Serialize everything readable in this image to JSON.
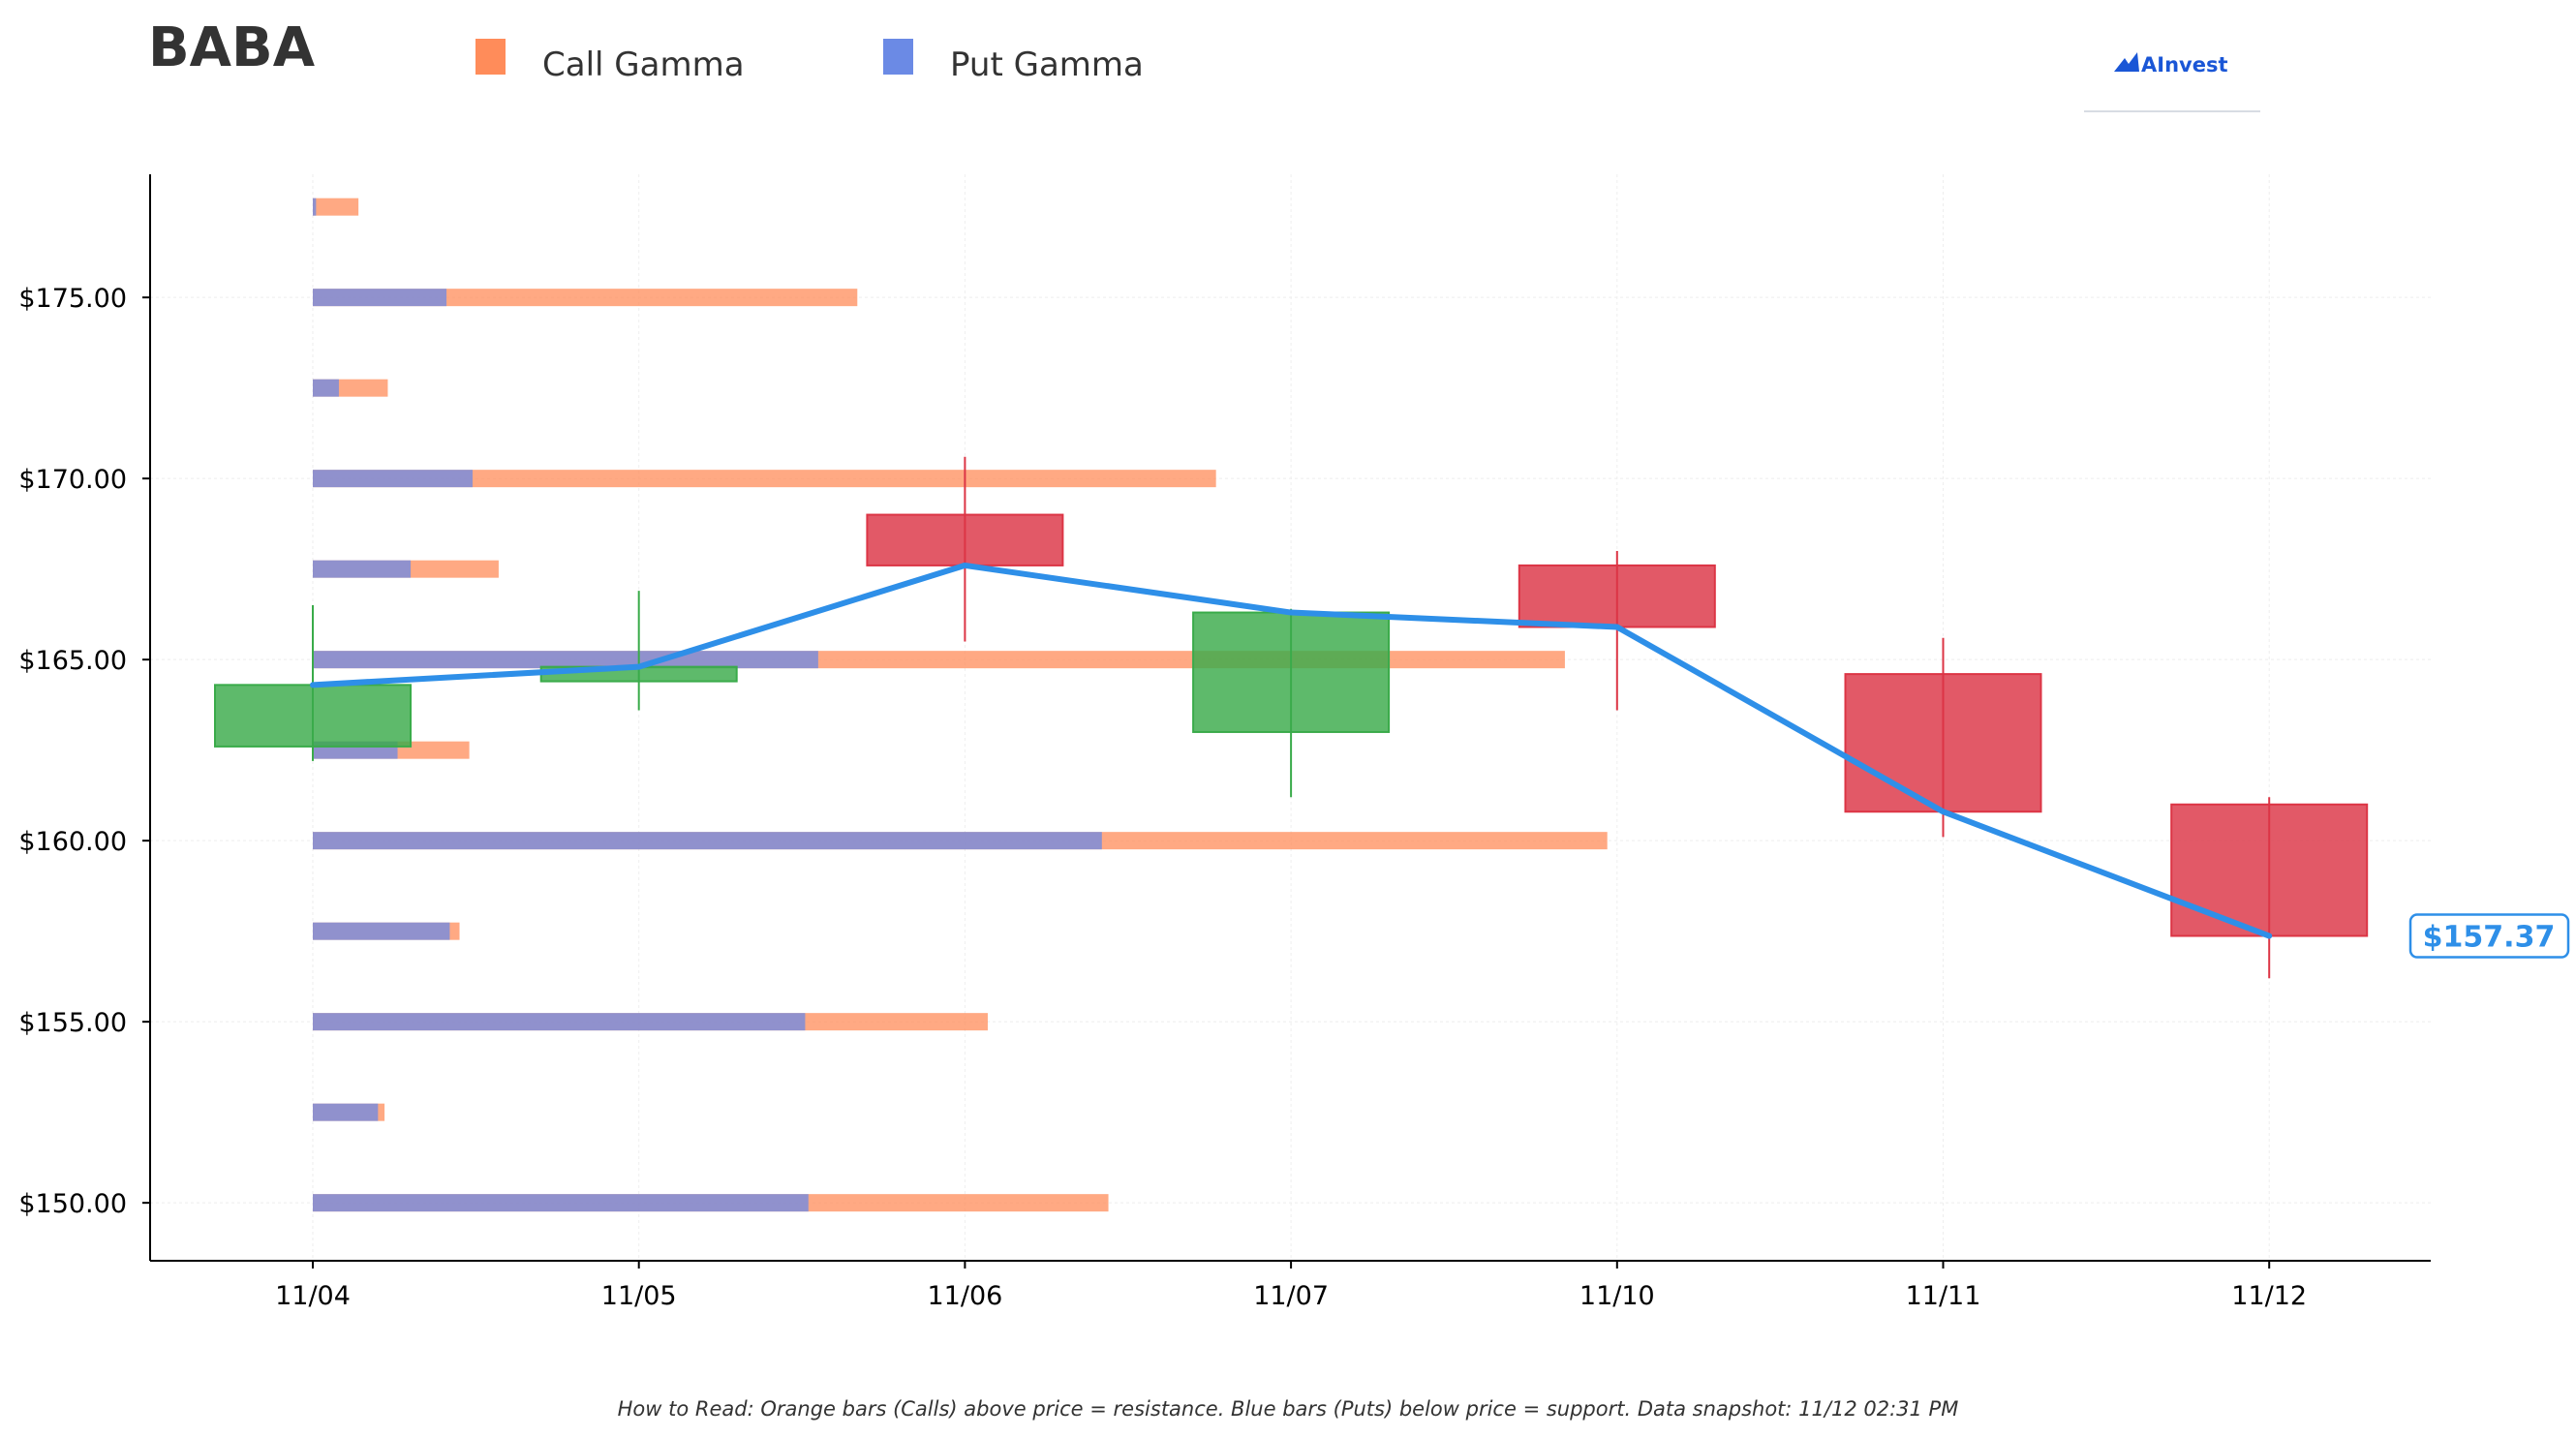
{
  "title": "BABA",
  "legend": [
    {
      "label": "Call Gamma",
      "color": "#ff8c5a"
    },
    {
      "label": "Put Gamma",
      "color": "#6b8ae5"
    }
  ],
  "brand": {
    "name": "AInvest",
    "icon": "ainvest-logo-icon"
  },
  "footnote": "How to Read: Orange bars (Calls) above price = resistance. Blue bars (Puts) below price = support. Data snapshot: 11/12 02:31 PM",
  "colors": {
    "up": "#3aab4a",
    "down": "#dc3545",
    "call": "#ff8c5a",
    "put": "#6b8ae5",
    "line": "#2e8fe8"
  },
  "chart_data": {
    "type": "candlestick",
    "categories": [
      "11/04",
      "11/05",
      "11/06",
      "11/07",
      "11/10",
      "11/11",
      "11/12"
    ],
    "ylim": [
      148.4,
      178.4
    ],
    "yticks": [
      150,
      155,
      160,
      165,
      170,
      175
    ],
    "ytick_labels": [
      "$150.00",
      "$155.00",
      "$160.00",
      "$165.00",
      "$170.00",
      "$175.00"
    ],
    "grid": true,
    "legend_position": "top",
    "candles": [
      {
        "date": "11/04",
        "open": 162.6,
        "high": 166.5,
        "low": 162.2,
        "close": 164.3
      },
      {
        "date": "11/05",
        "open": 164.4,
        "high": 166.9,
        "low": 163.6,
        "close": 164.8
      },
      {
        "date": "11/06",
        "open": 169.0,
        "high": 170.6,
        "low": 165.5,
        "close": 167.6
      },
      {
        "date": "11/07",
        "open": 163.0,
        "high": 166.4,
        "low": 161.2,
        "close": 166.3
      },
      {
        "date": "11/10",
        "open": 167.6,
        "high": 168.0,
        "low": 163.6,
        "close": 165.9
      },
      {
        "date": "11/11",
        "open": 164.6,
        "high": 165.6,
        "low": 160.1,
        "close": 160.8
      },
      {
        "date": "11/12",
        "open": 161.0,
        "high": 161.2,
        "low": 156.2,
        "close": 157.37
      }
    ],
    "close_line": [
      164.3,
      164.8,
      167.6,
      166.3,
      165.9,
      160.8,
      157.37
    ],
    "current_price_label": "$157.37",
    "current_price": 157.37,
    "gamma_scale_days": 3.5,
    "gamma": [
      {
        "strike": 177.5,
        "put": 0.01,
        "call": 0.14
      },
      {
        "strike": 175.0,
        "put": 0.41,
        "call": 1.67
      },
      {
        "strike": 172.5,
        "put": 0.08,
        "call": 0.23
      },
      {
        "strike": 170.0,
        "put": 0.49,
        "call": 2.77
      },
      {
        "strike": 167.5,
        "put": 0.3,
        "call": 0.57
      },
      {
        "strike": 165.0,
        "put": 1.55,
        "call": 3.84
      },
      {
        "strike": 162.5,
        "put": 0.26,
        "call": 0.48
      },
      {
        "strike": 160.0,
        "put": 2.42,
        "call": 3.97
      },
      {
        "strike": 157.5,
        "put": 0.42,
        "call": 0.45
      },
      {
        "strike": 155.0,
        "put": 1.51,
        "call": 2.07
      },
      {
        "strike": 152.5,
        "put": 0.2,
        "call": 0.22
      },
      {
        "strike": 150.0,
        "put": 1.52,
        "call": 2.44
      }
    ]
  }
}
